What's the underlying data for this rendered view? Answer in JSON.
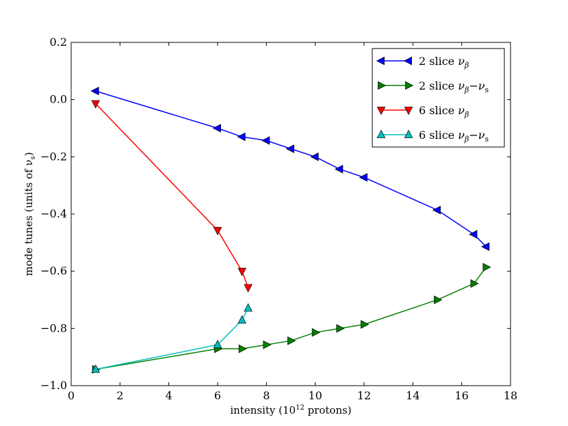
{
  "chart_data": {
    "type": "line",
    "title": "",
    "xlabel": "intensity (10",
    "xlabel_sup": "12",
    "xlabel_suffix": " protons)",
    "ylabel": "mode tunes (units of ν",
    "ylabel_sub": "s",
    "ylabel_suffix": ")",
    "xlim": [
      0,
      18
    ],
    "ylim": [
      -1.0,
      0.2
    ],
    "xticks": [
      0,
      2,
      4,
      6,
      8,
      10,
      12,
      14,
      16,
      18
    ],
    "yticks": [
      0.2,
      0.0,
      -0.2,
      -0.4,
      -0.6,
      -0.8,
      -1.0
    ],
    "xtick_labels": [
      "0",
      "2",
      "4",
      "6",
      "8",
      "10",
      "12",
      "14",
      "16",
      "18"
    ],
    "ytick_labels": [
      "0.2",
      "0.0",
      "−0.2",
      "−0.4",
      "−0.6",
      "−0.8",
      "−1.0"
    ],
    "legend_position": "top-right",
    "series": [
      {
        "name": "2 slice νβ",
        "label_text": "2 slice ",
        "label_symbol": "ν",
        "label_sub": "β",
        "label_extra": "",
        "label_extra_sub": "",
        "color": "#0000ff",
        "marker": "triangle-left",
        "x": [
          1,
          6,
          7,
          8,
          9,
          10,
          11,
          12,
          15,
          16.5,
          17
        ],
        "y": [
          0.03,
          -0.1,
          -0.13,
          -0.143,
          -0.172,
          -0.2,
          -0.243,
          -0.272,
          -0.386,
          -0.471,
          -0.514
        ]
      },
      {
        "name": "2 slice νβ−νs",
        "label_text": "2 slice ",
        "label_symbol": "ν",
        "label_sub": "β",
        "label_extra": "−ν",
        "label_extra_sub": "s",
        "color": "#008000",
        "marker": "triangle-right",
        "x": [
          1,
          6,
          7,
          8,
          9,
          10,
          11,
          12,
          15,
          16.5,
          17
        ],
        "y": [
          -0.943,
          -0.871,
          -0.871,
          -0.857,
          -0.843,
          -0.814,
          -0.8,
          -0.786,
          -0.7,
          -0.643,
          -0.586
        ]
      },
      {
        "name": "6 slice νβ",
        "label_text": "6 slice ",
        "label_symbol": "ν",
        "label_sub": "β",
        "label_extra": "",
        "label_extra_sub": "",
        "color": "#ff0000",
        "marker": "triangle-down",
        "x": [
          1,
          6,
          7,
          7.25
        ],
        "y": [
          -0.014,
          -0.457,
          -0.6,
          -0.657
        ]
      },
      {
        "name": "6 slice νβ−νs",
        "label_text": "6 slice ",
        "label_symbol": "ν",
        "label_sub": "β",
        "label_extra": "−ν",
        "label_extra_sub": "s",
        "color": "#00bfbf",
        "marker": "triangle-up",
        "x": [
          1,
          6,
          7,
          7.25
        ],
        "y": [
          -0.943,
          -0.857,
          -0.771,
          -0.729
        ]
      }
    ]
  }
}
